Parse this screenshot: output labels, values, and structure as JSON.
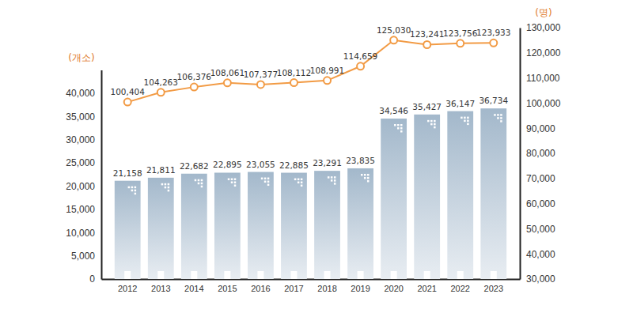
{
  "chart_data": {
    "type": "bar",
    "categories": [
      "2012",
      "2013",
      "2014",
      "2015",
      "2016",
      "2017",
      "2018",
      "2019",
      "2020",
      "2021",
      "2022",
      "2023"
    ],
    "y_label": "(개소)",
    "y2_label": "(명)",
    "ylim": [
      0,
      45000
    ],
    "yticks": [
      0,
      {
        "value": 5000,
        "label": "5,000"
      },
      {
        "value": 10000,
        "label": "10,000"
      },
      {
        "value": 15000,
        "label": "15,000"
      },
      {
        "value": 20000,
        "label": "20,000"
      },
      {
        "value": 25000,
        "label": "25,000"
      },
      {
        "value": 30000,
        "label": "30,000"
      },
      {
        "value": 35000,
        "label": "35,000"
      },
      {
        "value": 40000,
        "label": "40,000"
      }
    ],
    "y2lim": [
      30000,
      130000
    ],
    "y2ticks": [
      {
        "value": 30000,
        "label": "30,000"
      },
      {
        "value": 40000,
        "label": "40,000"
      },
      {
        "value": 50000,
        "label": "50,000"
      },
      {
        "value": 60000,
        "label": "60,000"
      },
      {
        "value": 70000,
        "label": "70,000"
      },
      {
        "value": 80000,
        "label": "80,000"
      },
      {
        "value": 90000,
        "label": "90,000"
      },
      {
        "value": 100000,
        "label": "100,000"
      },
      {
        "value": 110000,
        "label": "110,000"
      },
      {
        "value": 120000,
        "label": "120,000"
      },
      {
        "value": 130000,
        "label": "130,000"
      }
    ],
    "grid": false,
    "series": [
      {
        "type": "bar",
        "color": "#a3b8cb",
        "data_labels": true,
        "values": [
          21158,
          21811,
          22682,
          22895,
          23055,
          22885,
          23291,
          23835,
          34546,
          35427,
          36147,
          36734
        ],
        "value_labels": [
          "21,158",
          "21,811",
          "22,682",
          "22,895",
          "23,055",
          "22,885",
          "23,291",
          "23,835",
          "34,546",
          "35,427",
          "36,147",
          "36,734"
        ]
      },
      {
        "type": "line",
        "axis": "y2",
        "color": "#f29b45",
        "marker": "circle",
        "data_labels": true,
        "values": [
          100404,
          104263,
          106376,
          108061,
          107377,
          108112,
          108991,
          114659,
          125030,
          123241,
          123756,
          123933
        ],
        "value_labels": [
          "100,404",
          "104,263",
          "106,376",
          "108,061",
          "107,377",
          "108,112",
          "108,991",
          "114,659",
          "125,030",
          "123,241",
          "123,756",
          "123,933"
        ]
      }
    ]
  }
}
